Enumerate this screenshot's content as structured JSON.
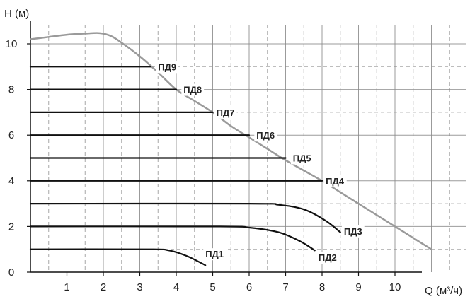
{
  "chart_data": {
    "type": "line",
    "title": "",
    "xlabel": "Q (м³/ч)",
    "ylabel": "H (м)",
    "xlim": [
      0,
      11.8
    ],
    "ylim": [
      0,
      11
    ],
    "grid": true,
    "x_ticks": [
      "1",
      "2",
      "3",
      "4",
      "5",
      "6",
      "7",
      "8",
      "9",
      "10"
    ],
    "y_ticks": [
      "0",
      "2",
      "4",
      "6",
      "8",
      "10"
    ],
    "envelope": {
      "points": [
        [
          0,
          10.2
        ],
        [
          0.5,
          10.3
        ],
        [
          1,
          10.4
        ],
        [
          1.5,
          10.45
        ],
        [
          1.9,
          10.47
        ],
        [
          2.2,
          10.35
        ],
        [
          2.5,
          10.05
        ],
        [
          3,
          9.45
        ],
        [
          3.5,
          8.75
        ],
        [
          4,
          8.0
        ],
        [
          4.5,
          7.5
        ],
        [
          5,
          7.0
        ],
        [
          5.5,
          6.4
        ],
        [
          6,
          5.9
        ],
        [
          6.5,
          5.4
        ],
        [
          7,
          4.9
        ],
        [
          7.5,
          4.45
        ],
        [
          8,
          4.0
        ],
        [
          8.5,
          3.5
        ],
        [
          9,
          3.0
        ],
        [
          9.5,
          2.5
        ],
        [
          10,
          2.0
        ],
        [
          10.5,
          1.5
        ],
        [
          11,
          1.0
        ]
      ]
    },
    "series": [
      {
        "name": "ПД1",
        "points": [
          [
            0,
            1.0
          ],
          [
            3.2,
            1.0
          ],
          [
            3.8,
            0.95
          ],
          [
            4.3,
            0.7
          ],
          [
            4.8,
            0.3
          ]
        ]
      },
      {
        "name": "ПД2",
        "points": [
          [
            0,
            2.0
          ],
          [
            5.2,
            2.0
          ],
          [
            6.0,
            1.95
          ],
          [
            6.8,
            1.75
          ],
          [
            7.4,
            1.35
          ],
          [
            7.8,
            0.95
          ]
        ]
      },
      {
        "name": "ПД3",
        "points": [
          [
            0,
            3.0
          ],
          [
            6.0,
            3.0
          ],
          [
            6.8,
            2.95
          ],
          [
            7.5,
            2.75
          ],
          [
            8.1,
            2.25
          ],
          [
            8.5,
            1.75
          ]
        ]
      },
      {
        "name": "ПД4",
        "points": [
          [
            0,
            4.0
          ],
          [
            8.0,
            4.0
          ]
        ]
      },
      {
        "name": "ПД5",
        "points": [
          [
            0,
            5.0
          ],
          [
            7.0,
            5.0
          ]
        ]
      },
      {
        "name": "ПД6",
        "points": [
          [
            0,
            6.0
          ],
          [
            6.0,
            6.0
          ]
        ]
      },
      {
        "name": "ПД7",
        "points": [
          [
            0,
            7.0
          ],
          [
            5.0,
            7.0
          ]
        ]
      },
      {
        "name": "ПД8",
        "points": [
          [
            0,
            8.0
          ],
          [
            4.0,
            8.0
          ]
        ]
      },
      {
        "name": "ПД9",
        "points": [
          [
            0,
            9.0
          ],
          [
            3.3,
            9.0
          ]
        ]
      }
    ],
    "label_anchors": {
      "ПД1": [
        4.8,
        0.8
      ],
      "ПД2": [
        7.9,
        0.65
      ],
      "ПД3": [
        8.6,
        1.8
      ],
      "ПД4": [
        8.1,
        4.0
      ],
      "ПД5": [
        7.2,
        5.0
      ],
      "ПД6": [
        6.2,
        6.0
      ],
      "ПД7": [
        5.1,
        7.0
      ],
      "ПД8": [
        4.2,
        8.0
      ],
      "ПД9": [
        3.5,
        9.0
      ]
    },
    "colors": {
      "series": "#111111",
      "envelope": "#9a9a9a",
      "axis": "#111111",
      "grid": "#8a8a8a"
    }
  }
}
